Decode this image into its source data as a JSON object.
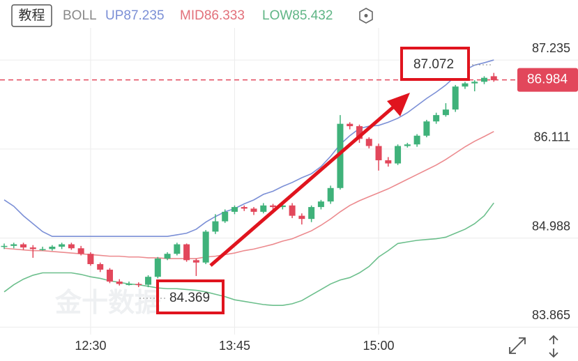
{
  "toolbar": {
    "button": "教程",
    "indicator": "BOLL",
    "up": "UP87.235",
    "mid": "MID86.333",
    "low": "LOW85.432"
  },
  "watermark": "金十数据",
  "chart_data": {
    "type": "candlestick",
    "categories": [
      null,
      null,
      null,
      null,
      null,
      null,
      null,
      null,
      null,
      "12:30",
      null,
      null,
      null,
      null,
      null,
      null,
      null,
      null,
      null,
      null,
      null,
      null,
      null,
      null,
      "13:45",
      null,
      null,
      null,
      null,
      null,
      null,
      null,
      null,
      null,
      null,
      null,
      null,
      null,
      null,
      "15:00",
      null,
      null,
      null,
      null,
      null,
      null,
      null,
      null,
      null,
      null,
      null,
      null
    ],
    "open": [
      84.88,
      84.89,
      84.91,
      84.87,
      84.85,
      84.85,
      84.88,
      84.91,
      84.86,
      84.79,
      84.66,
      84.59,
      84.44,
      84.41,
      84.41,
      84.4,
      84.5,
      84.73,
      84.79,
      84.91,
      84.71,
      84.68,
      85.07,
      85.2,
      85.32,
      85.38,
      85.36,
      85.32,
      85.4,
      85.38,
      85.4,
      85.27,
      85.23,
      85.38,
      85.45,
      85.62,
      86.43,
      86.4,
      86.24,
      86.15,
      85.97,
      85.93,
      86.15,
      86.17,
      86.28,
      86.46,
      86.54,
      86.61,
      86.9,
      86.94,
      86.96,
      87.03
    ],
    "high": [
      84.92,
      84.93,
      84.93,
      84.9,
      84.88,
      84.9,
      84.93,
      84.93,
      84.89,
      84.81,
      84.68,
      84.61,
      84.47,
      84.44,
      84.43,
      84.52,
      84.75,
      84.81,
      84.93,
      84.92,
      84.73,
      85.09,
      85.29,
      85.35,
      85.4,
      85.4,
      85.38,
      85.43,
      85.42,
      85.43,
      85.43,
      85.3,
      85.4,
      85.47,
      85.65,
      86.54,
      86.45,
      86.42,
      86.26,
      86.18,
      86.01,
      86.17,
      86.19,
      86.3,
      86.48,
      86.57,
      86.69,
      86.92,
      86.96,
      86.98,
      87.03,
      87.072
    ],
    "low": [
      84.85,
      84.86,
      84.84,
      84.74,
      84.83,
      84.83,
      84.85,
      84.84,
      84.77,
      84.64,
      84.56,
      84.42,
      84.39,
      84.39,
      84.37,
      84.369,
      84.48,
      84.71,
      84.77,
      84.69,
      84.51,
      84.66,
      85.04,
      85.18,
      85.29,
      85.33,
      85.28,
      85.3,
      85.34,
      85.35,
      85.24,
      85.16,
      85.19,
      85.35,
      85.42,
      85.6,
      86.36,
      86.19,
      86.12,
      85.84,
      85.89,
      85.91,
      86.13,
      86.14,
      86.26,
      86.43,
      86.52,
      86.58,
      86.87,
      86.84,
      86.93,
      86.96
    ],
    "close": [
      84.89,
      84.91,
      84.87,
      84.85,
      84.85,
      84.88,
      84.91,
      84.86,
      84.79,
      84.66,
      84.59,
      84.44,
      84.41,
      84.41,
      84.4,
      84.5,
      84.73,
      84.79,
      84.91,
      84.71,
      84.68,
      85.07,
      85.2,
      85.32,
      85.38,
      85.36,
      85.32,
      85.4,
      85.38,
      85.4,
      85.27,
      85.23,
      85.38,
      85.45,
      85.62,
      86.43,
      86.4,
      86.24,
      86.15,
      85.97,
      85.93,
      86.15,
      86.17,
      86.28,
      86.46,
      86.54,
      86.61,
      86.9,
      86.94,
      86.96,
      87.01,
      86.98
    ],
    "up_color": "#3fb27a",
    "down_color": "#e2475b",
    "series": [
      {
        "color": "#7b8fd6",
        "values": [
          85.47,
          85.39,
          85.27,
          85.17,
          85.07,
          85.01,
          85.01,
          85.01,
          85.01,
          85.01,
          85.01,
          85.01,
          85.01,
          85.01,
          85.01,
          85.01,
          85.01,
          85.01,
          85.03,
          85.05,
          85.1,
          85.19,
          85.26,
          85.32,
          85.36,
          85.42,
          85.47,
          85.54,
          85.58,
          85.64,
          85.69,
          85.75,
          85.8,
          85.89,
          86.02,
          86.17,
          86.28,
          86.37,
          86.4,
          86.41,
          86.45,
          86.5,
          86.57,
          86.66,
          86.75,
          86.83,
          86.92,
          87.03,
          87.11,
          87.17,
          87.2,
          87.235
        ]
      },
      {
        "color": "#ec8a8e",
        "values": [
          84.86,
          84.85,
          84.84,
          84.83,
          84.83,
          84.82,
          84.81,
          84.8,
          84.79,
          84.78,
          84.77,
          84.76,
          84.76,
          84.75,
          84.75,
          84.74,
          84.74,
          84.73,
          84.73,
          84.73,
          84.73,
          84.75,
          84.76,
          84.78,
          84.8,
          84.83,
          84.85,
          84.88,
          84.91,
          84.95,
          84.98,
          85.03,
          85.08,
          85.15,
          85.23,
          85.32,
          85.4,
          85.46,
          85.51,
          85.56,
          85.61,
          85.67,
          85.73,
          85.79,
          85.85,
          85.91,
          85.98,
          86.06,
          86.14,
          86.21,
          86.27,
          86.333
        ]
      },
      {
        "color": "#6cbf8c",
        "values": [
          84.31,
          84.4,
          84.47,
          84.52,
          84.55,
          84.55,
          84.55,
          84.55,
          84.53,
          84.5,
          84.48,
          84.45,
          84.43,
          84.41,
          84.4,
          84.38,
          84.36,
          84.35,
          84.35,
          84.34,
          84.33,
          84.31,
          84.28,
          84.25,
          84.21,
          84.19,
          84.17,
          84.15,
          84.14,
          84.14,
          84.16,
          84.2,
          84.27,
          84.34,
          84.41,
          84.46,
          84.49,
          84.55,
          84.63,
          84.75,
          84.83,
          84.92,
          84.94,
          84.96,
          84.97,
          84.98,
          85.0,
          85.05,
          85.1,
          85.17,
          85.27,
          85.432
        ]
      }
    ],
    "ylim": [
      83.86,
      87.64
    ],
    "yticks": [
      87.235,
      86.111,
      84.988,
      83.865
    ],
    "grid": true,
    "last_price": 86.984,
    "last_price_color": "#e2475b",
    "annotations": [
      {
        "value": 87.072
      },
      {
        "value": 84.369
      }
    ]
  }
}
